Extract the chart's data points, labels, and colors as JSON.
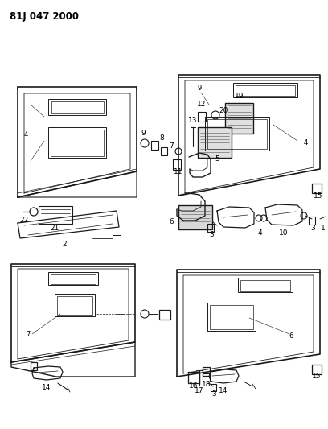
{
  "title": "81J 047 2000",
  "bg_color": "#ffffff",
  "line_color": "#1a1a1a",
  "title_fontsize": 8.5,
  "figsize": [
    4.08,
    5.33
  ],
  "dpi": 100
}
